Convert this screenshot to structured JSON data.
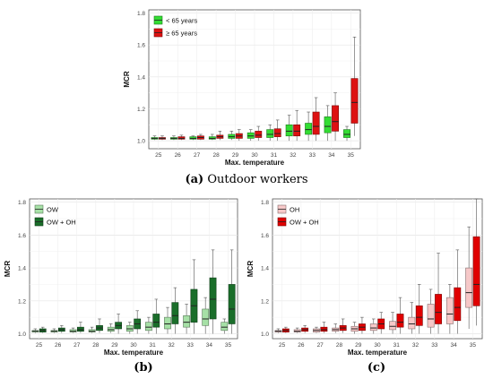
{
  "colors": {
    "young": "#33dd33",
    "old": "#dd1111",
    "ow": "#a6e0a6",
    "owoh_green": "#1a6e2a",
    "oh_pink": "#f6c8c8",
    "owoh_red": "#e00000"
  },
  "captions": {
    "a_letter": "(a)",
    "a_text": " Outdoor workers",
    "b": "(b)",
    "c": "(c)"
  },
  "chart_data": [
    {
      "id": "a",
      "type": "boxplot",
      "xlabel": "Max. temperature",
      "ylabel": "MCR",
      "ylim": [
        0.95,
        1.82
      ],
      "yticks": [
        1.0,
        1.2,
        1.4,
        1.6,
        1.8
      ],
      "categories": [
        "25",
        "26",
        "27",
        "28",
        "29",
        "30",
        "31",
        "32",
        "33",
        "34",
        "35"
      ],
      "legend_position": "top-left",
      "series": [
        {
          "name": "< 65 years",
          "color_key": "young",
          "boxes": [
            [
              1.005,
              1.01,
              1.015,
              1.02,
              1.03
            ],
            [
              1.005,
              1.01,
              1.015,
              1.02,
              1.03
            ],
            [
              1.005,
              1.01,
              1.015,
              1.025,
              1.03
            ],
            [
              1.005,
              1.01,
              1.015,
              1.025,
              1.04
            ],
            [
              1.005,
              1.015,
              1.025,
              1.04,
              1.06
            ],
            [
              1.0,
              1.015,
              1.03,
              1.05,
              1.07
            ],
            [
              1.0,
              1.02,
              1.04,
              1.07,
              1.1
            ],
            [
              1.0,
              1.03,
              1.06,
              1.1,
              1.16
            ],
            [
              1.0,
              1.04,
              1.07,
              1.11,
              1.18
            ],
            [
              1.0,
              1.05,
              1.09,
              1.15,
              1.22
            ],
            [
              1.0,
              1.02,
              1.04,
              1.07,
              1.09
            ]
          ]
        },
        {
          "name": "≥ 65 years",
          "color_key": "old",
          "boxes": [
            [
              1.005,
              1.01,
              1.015,
              1.02,
              1.03
            ],
            [
              1.005,
              1.01,
              1.015,
              1.025,
              1.035
            ],
            [
              1.005,
              1.01,
              1.02,
              1.03,
              1.04
            ],
            [
              1.005,
              1.015,
              1.025,
              1.035,
              1.06
            ],
            [
              1.0,
              1.015,
              1.03,
              1.045,
              1.07
            ],
            [
              1.0,
              1.02,
              1.035,
              1.06,
              1.09
            ],
            [
              1.0,
              1.025,
              1.045,
              1.075,
              1.13
            ],
            [
              1.0,
              1.03,
              1.06,
              1.1,
              1.19
            ],
            [
              1.0,
              1.04,
              1.09,
              1.18,
              1.27
            ],
            [
              1.0,
              1.06,
              1.12,
              1.22,
              1.3
            ],
            [
              1.03,
              1.11,
              1.24,
              1.39,
              1.65
            ]
          ]
        }
      ]
    },
    {
      "id": "b",
      "type": "boxplot",
      "xlabel": "Max. temperature",
      "ylabel": "MCR",
      "ylim": [
        0.97,
        1.82
      ],
      "yticks": [
        1.0,
        1.2,
        1.4,
        1.6,
        1.8
      ],
      "categories": [
        "25",
        "26",
        "27",
        "28",
        "29",
        "30",
        "31",
        "32",
        "33",
        "34",
        "35"
      ],
      "legend_position": "top-left",
      "series": [
        {
          "name": "OW",
          "color_key": "ow",
          "boxes": [
            [
              1.005,
              1.01,
              1.015,
              1.02,
              1.03
            ],
            [
              1.005,
              1.01,
              1.015,
              1.02,
              1.03
            ],
            [
              1.005,
              1.01,
              1.015,
              1.025,
              1.035
            ],
            [
              1.005,
              1.01,
              1.015,
              1.025,
              1.04
            ],
            [
              1.005,
              1.015,
              1.025,
              1.04,
              1.06
            ],
            [
              1.0,
              1.015,
              1.03,
              1.05,
              1.07
            ],
            [
              1.0,
              1.02,
              1.04,
              1.07,
              1.1
            ],
            [
              1.0,
              1.03,
              1.06,
              1.1,
              1.16
            ],
            [
              1.0,
              1.04,
              1.07,
              1.11,
              1.18
            ],
            [
              1.0,
              1.05,
              1.09,
              1.15,
              1.22
            ],
            [
              1.0,
              1.02,
              1.04,
              1.07,
              1.09
            ]
          ]
        },
        {
          "name": "OW + OH",
          "color_key": "owoh_green",
          "boxes": [
            [
              1.005,
              1.01,
              1.02,
              1.03,
              1.04
            ],
            [
              1.005,
              1.015,
              1.025,
              1.035,
              1.05
            ],
            [
              1.005,
              1.015,
              1.025,
              1.04,
              1.07
            ],
            [
              1.005,
              1.02,
              1.035,
              1.05,
              1.09
            ],
            [
              1.0,
              1.03,
              1.05,
              1.07,
              1.12
            ],
            [
              1.0,
              1.03,
              1.06,
              1.09,
              1.14
            ],
            [
              1.0,
              1.04,
              1.07,
              1.12,
              1.21
            ],
            [
              1.0,
              1.06,
              1.11,
              1.19,
              1.28
            ],
            [
              1.0,
              1.07,
              1.17,
              1.27,
              1.45
            ],
            [
              1.0,
              1.09,
              1.21,
              1.34,
              1.51
            ],
            [
              1.0,
              1.06,
              1.15,
              1.3,
              1.51
            ]
          ]
        }
      ]
    },
    {
      "id": "c",
      "type": "boxplot",
      "xlabel": "Max. temperature",
      "ylabel": "MCR",
      "ylim": [
        0.97,
        1.82
      ],
      "yticks": [
        1.0,
        1.2,
        1.4,
        1.6,
        1.8
      ],
      "categories": [
        "25",
        "26",
        "27",
        "28",
        "29",
        "30",
        "31",
        "32",
        "33",
        "34",
        "35"
      ],
      "legend_position": "top-left",
      "series": [
        {
          "name": "OH",
          "color_key": "oh_pink",
          "boxes": [
            [
              1.005,
              1.01,
              1.015,
              1.02,
              1.03
            ],
            [
              1.005,
              1.01,
              1.015,
              1.025,
              1.035
            ],
            [
              1.005,
              1.01,
              1.02,
              1.03,
              1.04
            ],
            [
              1.005,
              1.015,
              1.025,
              1.035,
              1.06
            ],
            [
              1.0,
              1.015,
              1.03,
              1.045,
              1.07
            ],
            [
              1.0,
              1.02,
              1.035,
              1.06,
              1.09
            ],
            [
              1.0,
              1.025,
              1.045,
              1.075,
              1.13
            ],
            [
              1.0,
              1.03,
              1.06,
              1.1,
              1.19
            ],
            [
              1.0,
              1.04,
              1.09,
              1.18,
              1.27
            ],
            [
              1.0,
              1.06,
              1.12,
              1.22,
              1.3
            ],
            [
              1.03,
              1.16,
              1.25,
              1.4,
              1.65
            ]
          ]
        },
        {
          "name": "OW + OH",
          "color_key": "owoh_red",
          "boxes": [
            [
              1.005,
              1.01,
              1.02,
              1.03,
              1.04
            ],
            [
              1.005,
              1.015,
              1.025,
              1.035,
              1.05
            ],
            [
              1.005,
              1.015,
              1.025,
              1.04,
              1.07
            ],
            [
              1.005,
              1.02,
              1.035,
              1.05,
              1.09
            ],
            [
              1.0,
              1.02,
              1.04,
              1.06,
              1.1
            ],
            [
              1.0,
              1.03,
              1.06,
              1.09,
              1.13
            ],
            [
              1.0,
              1.04,
              1.07,
              1.12,
              1.22
            ],
            [
              1.0,
              1.05,
              1.1,
              1.17,
              1.3
            ],
            [
              1.0,
              1.06,
              1.13,
              1.24,
              1.49
            ],
            [
              1.0,
              1.08,
              1.16,
              1.28,
              1.51
            ],
            [
              1.05,
              1.17,
              1.3,
              1.59,
              1.82
            ]
          ]
        }
      ]
    }
  ]
}
